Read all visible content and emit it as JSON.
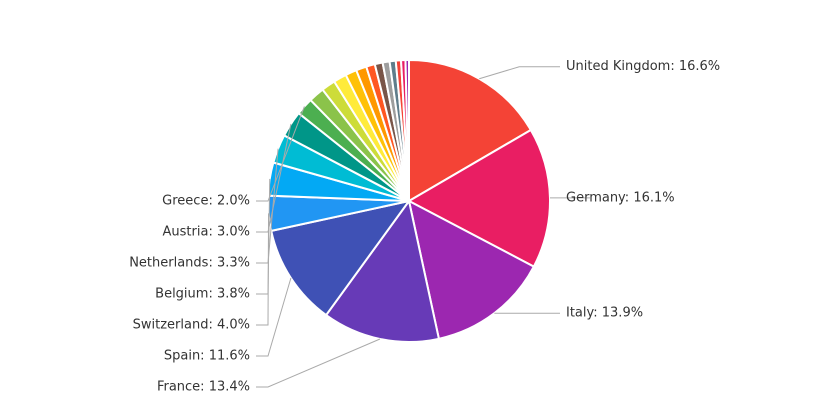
{
  "chart_data": {
    "type": "pie",
    "values": [
      16.6,
      16.1,
      13.9,
      13.4,
      11.6,
      4.0,
      3.8,
      3.3,
      3.0,
      2.0,
      1.8,
      1.6,
      1.5,
      1.3,
      1.2,
      1.0,
      0.9,
      0.8,
      0.7,
      0.6,
      0.5,
      0.4
    ],
    "value_labels": [
      "United Kingdom: 16.6%",
      "Germany: 16.1%",
      "Italy: 13.9%",
      "France: 13.4%",
      "Spain: 11.6%",
      "Switzerland: 4.0%",
      "Belgium: 3.8%",
      "Netherlands: 3.3%",
      "Austria: 3.0%",
      "Greece: 2.0%",
      null,
      null,
      null,
      null,
      null,
      null,
      null,
      null,
      null,
      null,
      null,
      null
    ],
    "colors": [
      "#f44336",
      "#e91e63",
      "#9c27b0",
      "#673ab7",
      "#3f51b5",
      "#2196f3",
      "#03a9f4",
      "#00bcd4",
      "#009688",
      "#4caf50",
      "#8bc34a",
      "#cddc39",
      "#ffeb3b",
      "#ffc107",
      "#ff9800",
      "#ff5722",
      "#795548",
      "#9e9e9e",
      "#607d8b",
      "#f44336",
      "#e91e63",
      "#9c27b0"
    ]
  }
}
